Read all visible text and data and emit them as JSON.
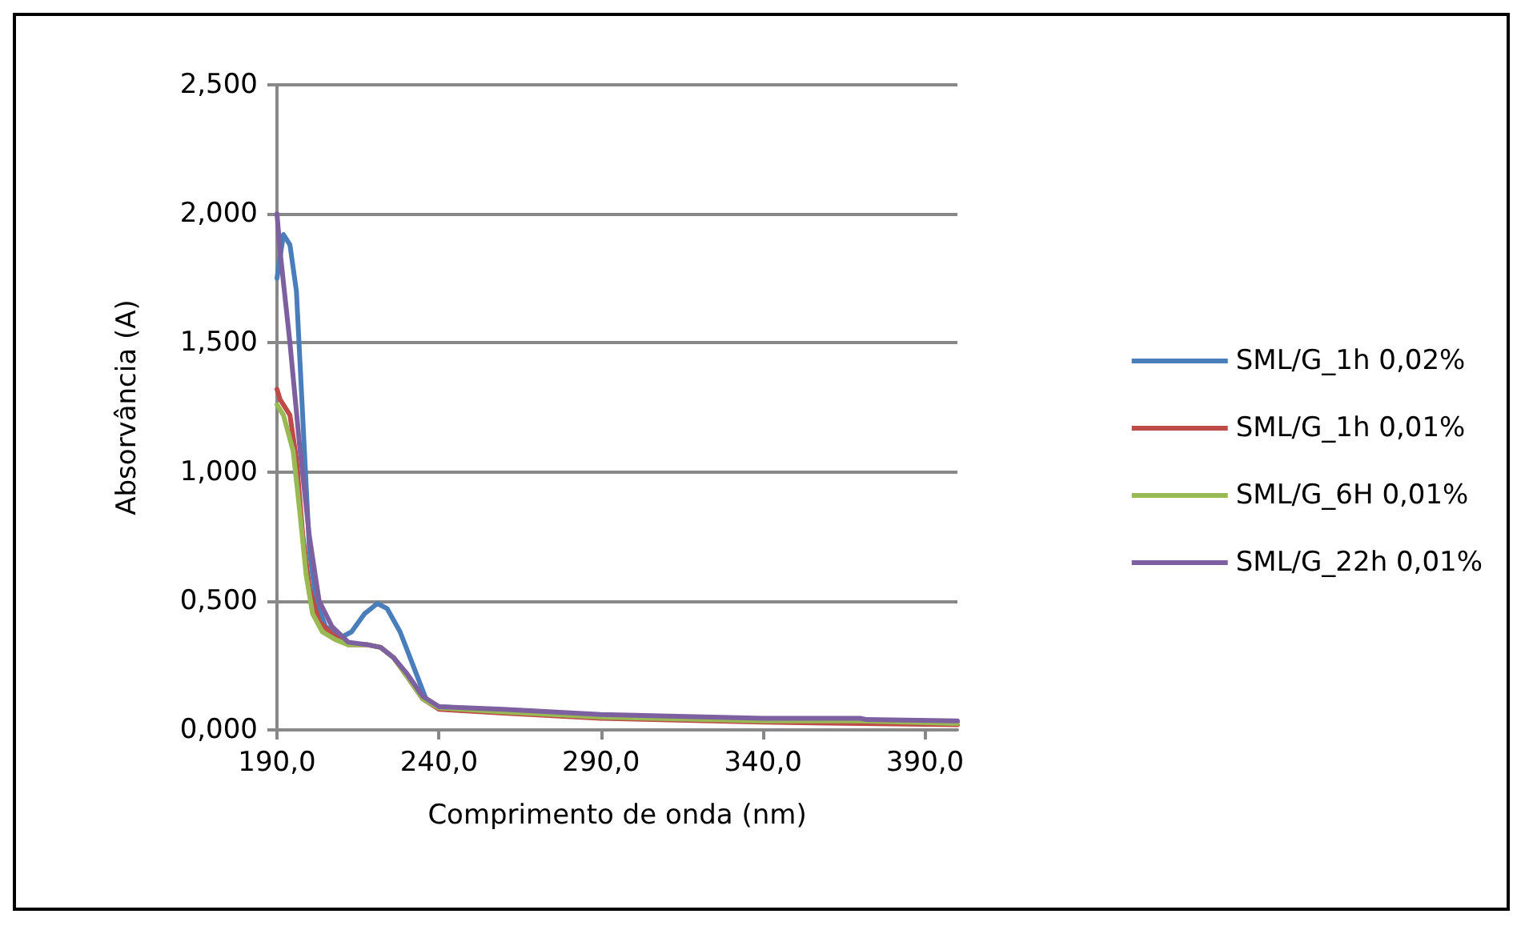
{
  "chart_data": {
    "type": "line",
    "xlabel": "Comprimento de onda (nm)",
    "ylabel": "Absorvância (A)",
    "xlim": [
      190,
      400
    ],
    "xticks": [
      {
        "value": 190,
        "label": "190,0"
      },
      {
        "value": 240,
        "label": "240,0"
      },
      {
        "value": 290,
        "label": "290,0"
      },
      {
        "value": 340,
        "label": "340,0"
      },
      {
        "value": 390,
        "label": "390,0"
      }
    ],
    "ylim": [
      0,
      2.5
    ],
    "yticks": [
      {
        "value": 0,
        "label": "0,000"
      },
      {
        "value": 0.5,
        "label": "0,500"
      },
      {
        "value": 1,
        "label": "1,000"
      },
      {
        "value": 1.5,
        "label": "1,500"
      },
      {
        "value": 2,
        "label": "2,000"
      },
      {
        "value": 2.5,
        "label": "2,500"
      }
    ],
    "grid": "y",
    "legend": "right",
    "marker": "none",
    "line_style": "solid",
    "series": [
      {
        "name": "SML/G_1h 0,02%",
        "color": "#4a7ebb",
        "x": [
          190,
          192,
          194,
          196,
          198,
          200,
          202,
          205,
          210,
          213,
          217,
          221,
          224,
          228,
          232,
          236,
          240,
          260,
          290,
          340,
          370,
          400
        ],
        "values": [
          1.75,
          1.92,
          1.88,
          1.7,
          1.2,
          0.7,
          0.5,
          0.4,
          0.36,
          0.38,
          0.45,
          0.49,
          0.47,
          0.38,
          0.25,
          0.12,
          0.09,
          0.075,
          0.055,
          0.04,
          0.035,
          0.03
        ]
      },
      {
        "name": "SML/G_1h 0,01%",
        "color": "#be4b48",
        "x": [
          190,
          191,
          194,
          196,
          198,
          200,
          203,
          207,
          212,
          218,
          222,
          226,
          230,
          235,
          240,
          260,
          290,
          340,
          400
        ],
        "values": [
          1.32,
          1.28,
          1.22,
          1.05,
          0.75,
          0.55,
          0.42,
          0.37,
          0.33,
          0.33,
          0.32,
          0.28,
          0.21,
          0.12,
          0.08,
          0.065,
          0.045,
          0.03,
          0.02
        ]
      },
      {
        "name": "SML/G_6H 0,01%",
        "color": "#98b954",
        "x": [
          190,
          192,
          195,
          197,
          199,
          201,
          204,
          208,
          212,
          218,
          222,
          226,
          230,
          235,
          240,
          260,
          290,
          340,
          370,
          400
        ],
        "values": [
          1.26,
          1.22,
          1.08,
          0.85,
          0.6,
          0.45,
          0.38,
          0.35,
          0.33,
          0.33,
          0.32,
          0.28,
          0.21,
          0.12,
          0.085,
          0.07,
          0.05,
          0.035,
          0.035,
          0.025
        ]
      },
      {
        "name": "SML/G_22h 0,01%",
        "color": "#7d60a0",
        "x": [
          190,
          191,
          194,
          197,
          200,
          203,
          207,
          212,
          218,
          222,
          226,
          230,
          235,
          240,
          260,
          290,
          340,
          370,
          372,
          400
        ],
        "values": [
          2.0,
          1.85,
          1.5,
          1.1,
          0.75,
          0.5,
          0.4,
          0.34,
          0.33,
          0.32,
          0.28,
          0.22,
          0.13,
          0.09,
          0.08,
          0.06,
          0.045,
          0.045,
          0.04,
          0.035
        ]
      }
    ]
  }
}
